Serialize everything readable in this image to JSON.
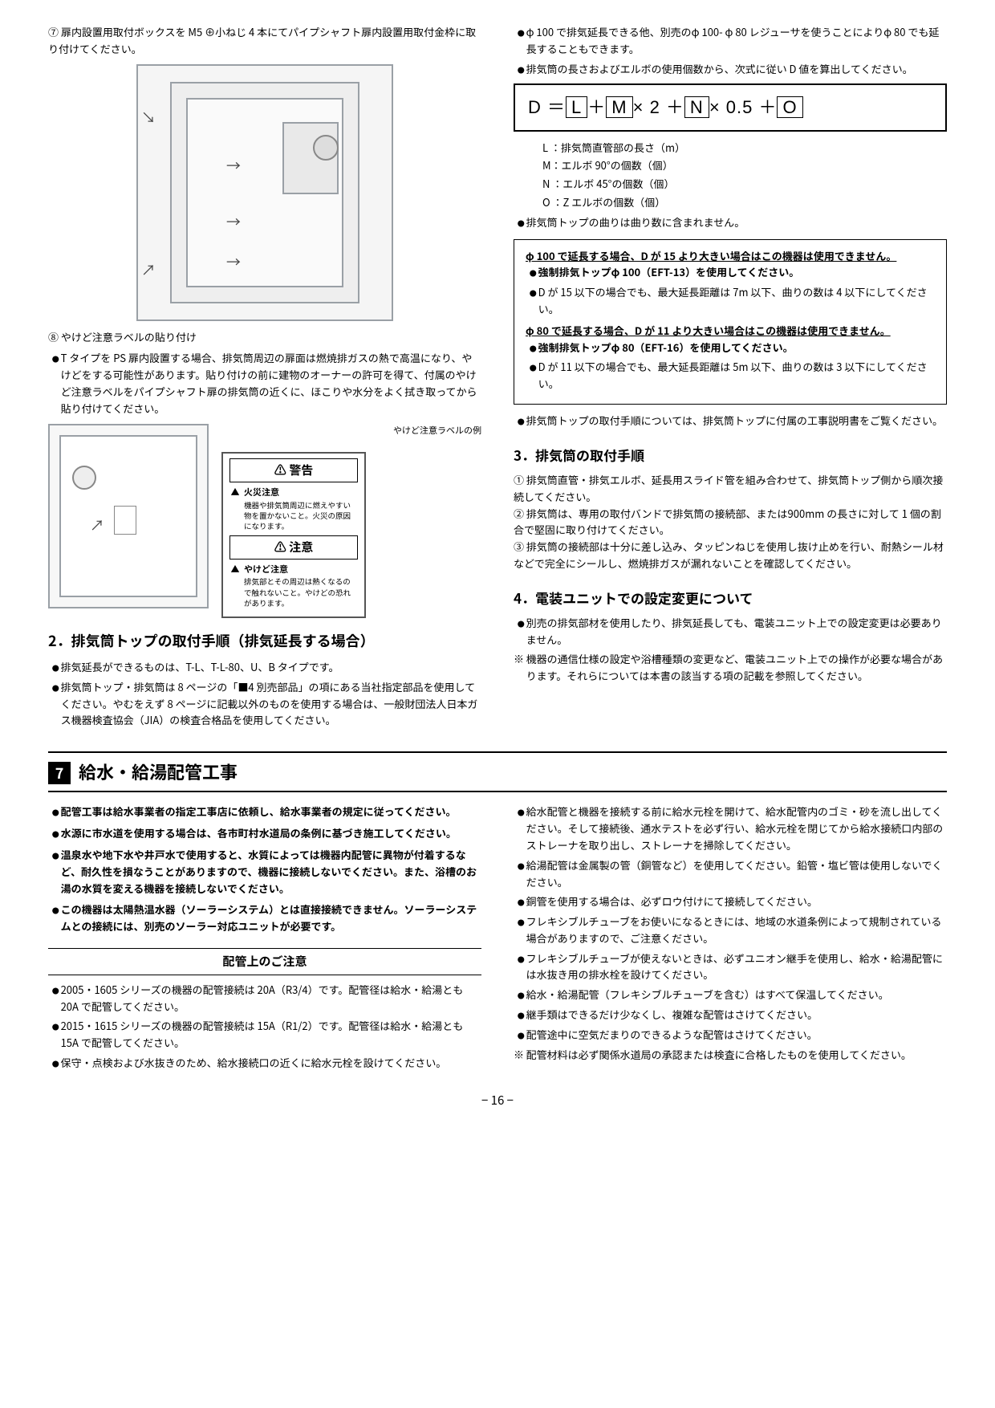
{
  "left": {
    "item7": "⑦ 扉内設置用取付ボックスを M5 ⊕小ねじ 4 本にてパイプシャフト扉内設置用取付金枠に取り付けてください。",
    "item8_title": "⑧ やけど注意ラベルの貼り付け",
    "item8_bullet": "T タイプを PS 扉内設置する場合、排気筒周辺の扉面は燃焼排ガスの熱で高温になり、やけどをする可能性があります。貼り付けの前に建物のオーナーの許可を得て、付属のやけど注意ラベルをパイプシャフト扉の排気筒の近くに、ほこりや水分をよく拭き取ってから貼り付けてください。",
    "label_example_cap": "やけど注意ラベルの例",
    "warn_title": "⚠ 警告",
    "warn_sub": "火災注意",
    "warn_text": "機器や排気筒周辺に燃えやすい物を置かないこと。火災の原因になります。",
    "caut_title": "⚠ 注意",
    "caut_sub": "やけど注意",
    "caut_text": "排気部とその周辺は熱くなるので触れないこと。やけどの恐れがあります。",
    "sec2_title": "2．排気筒トップの取付手順（排気延長する場合）",
    "sec2_b1": "排気延長ができるものは、T-L、T-L-80、U、B タイプです。",
    "sec2_b2": "排気筒トップ・排気筒は 8 ページの「■4 別売部品」の項にある当社指定部品を使用してください。やむをえず 8 ページに記載以外のものを使用する場合は、一般財団法人日本ガス機器検査協会（JIA）の検査合格品を使用してください。"
  },
  "right": {
    "top_b1": "φ 100 で排気延長できる他、別売のφ 100- φ 80 レジューサを使うことによりφ 80 でも延長することもできます。",
    "top_b2": "排気筒の長さおよびエルボの使用個数から、次式に従い D 値を算出してください。",
    "formula": "D ＝[L]＋[M]× 2 ＋[N]× 0.5 ＋[O]",
    "legend_L": "L ：排気筒直管部の長さ（m）",
    "legend_M": "M：エルボ 90°の個数（個）",
    "legend_N": "N ：エルボ 45°の個数（個）",
    "legend_O": "O ：Z エルボの個数（個）",
    "formula_note": "排気筒トップの曲りは曲り数に含まれません。",
    "box_u1": "φ 100 で延長する場合、D が 15 より大きい場合はこの機器は使用できません。",
    "box_b1": "強制排気トップφ 100（EFT-13）を使用してください。",
    "box_b2": "D が 15 以下の場合でも、最大延長距離は 7m 以下、曲りの数は 4 以下にしてください。",
    "box_u2": "φ 80 で延長する場合、D が 11 より大きい場合はこの機器は使用できません。",
    "box_b3": "強制排気トップφ 80（EFT-16）を使用してください。",
    "box_b4": "D が 11 以下の場合でも、最大延長距離は 5m 以下、曲りの数は 3 以下にしてください。",
    "after_box": "排気筒トップの取付手順については、排気筒トップに付属の工事説明書をご覧ください。",
    "sec3_title": "3．排気筒の取付手順",
    "sec3_1": "① 排気筒直管・排気エルボ、延長用スライド管を組み合わせて、排気筒トップ側から順次接続してください。",
    "sec3_2": "② 排気筒は、専用の取付バンドで排気筒の接続部、または900mm の長さに対して 1 個の割合で堅固に取り付けてください。",
    "sec3_3": "③ 排気筒の接続部は十分に差し込み、タッピンねじを使用し抜け止めを行い、耐熱シール材などで完全にシールし、燃焼排ガスが漏れないことを確認してください。",
    "sec4_title": "4．電装ユニットでの設定変更について",
    "sec4_b1": "別売の排気部材を使用したり、排気延長しても、電装ユニット上での設定変更は必要ありません。",
    "sec4_note": "機器の通信仕様の設定や浴槽種類の変更など、電装ユニット上での操作が必要な場合があります。それらについては本書の該当する項の記載を参照してください。"
  },
  "section7": {
    "bar": "給水・給湯配管工事",
    "left_bold": [
      "配管工事は給水事業者の指定工事店に依頼し、給水事業者の規定に従ってください。",
      "水源に市水道を使用する場合は、各市町村水道局の条例に基づき施工してください。",
      "温泉水や地下水や井戸水で使用すると、水質によっては機器内配管に異物が付着するなど、耐久性を損なうことがありますので、機器に接続しないでください。また、浴槽のお湯の水質を変える機器を接続しないでください。",
      "この機器は太陽熱温水器（ソーラーシステム）とは直接接続できません。ソーラーシステムとの接続には、別売のソーラー対応ユニットが必要です。"
    ],
    "piping_title": "配管上のご注意",
    "left_b": [
      "2005・1605 シリーズの機器の配管接続は 20A（R3/4）です。配管径は給水・給湯とも 20A で配管してください。",
      "2015・1615 シリーズの機器の配管接続は 15A（R1/2）です。配管径は給水・給湯とも 15A で配管してください。",
      "保守・点検および水抜きのため、給水接続口の近くに給水元栓を設けてください。"
    ],
    "right_b": [
      "給水配管と機器を接続する前に給水元栓を開けて、給水配管内のゴミ・砂を流し出してください。そして接続後、通水テストを必ず行い、給水元栓を閉じてから給水接続口内部のストレーナを取り出し、ストレーナを掃除してください。",
      "給湯配管は金属製の管（銅管など）を使用してください。鉛管・塩ビ管は使用しないでください。",
      "銅管を使用する場合は、必ずロウ付けにて接続してください。",
      "フレキシブルチューブをお使いになるときには、地域の水道条例によって規制されている場合がありますので、ご注意ください。",
      "フレキシブルチューブが使えないときは、必ずユニオン継手を使用し、給水・給湯配管には水抜き用の排水栓を設けてください。",
      "給水・給湯配管（フレキシブルチューブを含む）はすべて保温してください。",
      "継手類はできるだけ少なくし、複雑な配管はさけてください。",
      "配管途中に空気だまりのできるような配管はさけてください。"
    ],
    "right_note": "配管材料は必ず関係水道局の承認または検査に合格したものを使用してください。"
  },
  "page_num": "− 16 −"
}
